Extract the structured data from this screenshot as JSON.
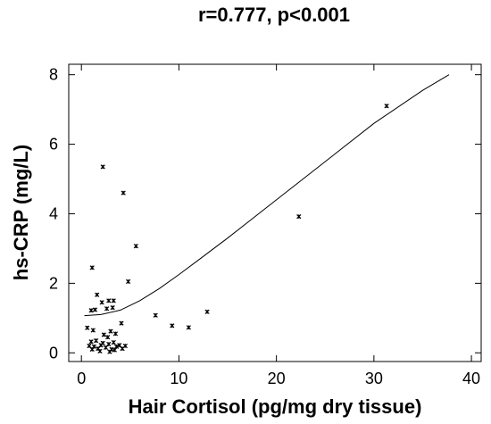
{
  "chart_data": {
    "type": "scatter",
    "title": "r=0.777, p<0.001",
    "xlabel": "Hair Cortisol (pg/mg dry tissue)",
    "ylabel": "hs-CRP (mg/L)",
    "xlim": [
      -1.3,
      41
    ],
    "ylim": [
      -0.25,
      8.3
    ],
    "xticks": [
      0,
      10,
      20,
      30,
      40
    ],
    "yticks": [
      0,
      2,
      4,
      6,
      8
    ],
    "grid": false,
    "series": [
      {
        "points": [
          [
            31.3,
            7.1
          ],
          [
            22.3,
            3.92
          ],
          [
            2.2,
            5.35
          ],
          [
            4.3,
            4.6
          ],
          [
            5.6,
            3.07
          ],
          [
            4.8,
            2.05
          ],
          [
            1.1,
            2.45
          ],
          [
            12.9,
            1.18
          ],
          [
            7.6,
            1.08
          ],
          [
            9.3,
            0.78
          ],
          [
            11.0,
            0.73
          ],
          [
            1.6,
            1.67
          ],
          [
            2.1,
            1.45
          ],
          [
            2.8,
            1.5
          ],
          [
            3.3,
            1.5
          ],
          [
            1.0,
            1.22
          ],
          [
            1.4,
            1.24
          ],
          [
            2.6,
            1.27
          ],
          [
            3.2,
            1.3
          ],
          [
            4.1,
            0.85
          ],
          [
            0.6,
            0.72
          ],
          [
            1.2,
            0.65
          ],
          [
            3.0,
            0.62
          ],
          [
            2.3,
            0.52
          ],
          [
            2.7,
            0.45
          ],
          [
            3.5,
            0.55
          ],
          [
            1.5,
            0.35
          ],
          [
            0.8,
            0.2
          ],
          [
            1.0,
            0.32
          ],
          [
            1.3,
            0.18
          ],
          [
            1.7,
            0.12
          ],
          [
            2.0,
            0.22
          ],
          [
            2.2,
            0.28
          ],
          [
            2.5,
            0.15
          ],
          [
            2.8,
            0.25
          ],
          [
            3.1,
            0.1
          ],
          [
            3.3,
            0.3
          ],
          [
            3.6,
            0.18
          ],
          [
            3.9,
            0.22
          ],
          [
            4.2,
            0.12
          ],
          [
            4.5,
            0.2
          ],
          [
            1.9,
            0.05
          ],
          [
            2.9,
            0.03
          ],
          [
            3.4,
            0.08
          ],
          [
            1.1,
            0.1
          ]
        ]
      }
    ],
    "fit_line": [
      [
        0.3,
        1.07
      ],
      [
        2,
        1.1
      ],
      [
        4,
        1.23
      ],
      [
        6,
        1.5
      ],
      [
        8,
        1.85
      ],
      [
        10,
        2.25
      ],
      [
        12,
        2.67
      ],
      [
        15,
        3.3
      ],
      [
        20,
        4.4
      ],
      [
        25,
        5.5
      ],
      [
        30,
        6.6
      ],
      [
        35,
        7.55
      ],
      [
        37.7,
        8.0
      ]
    ]
  }
}
